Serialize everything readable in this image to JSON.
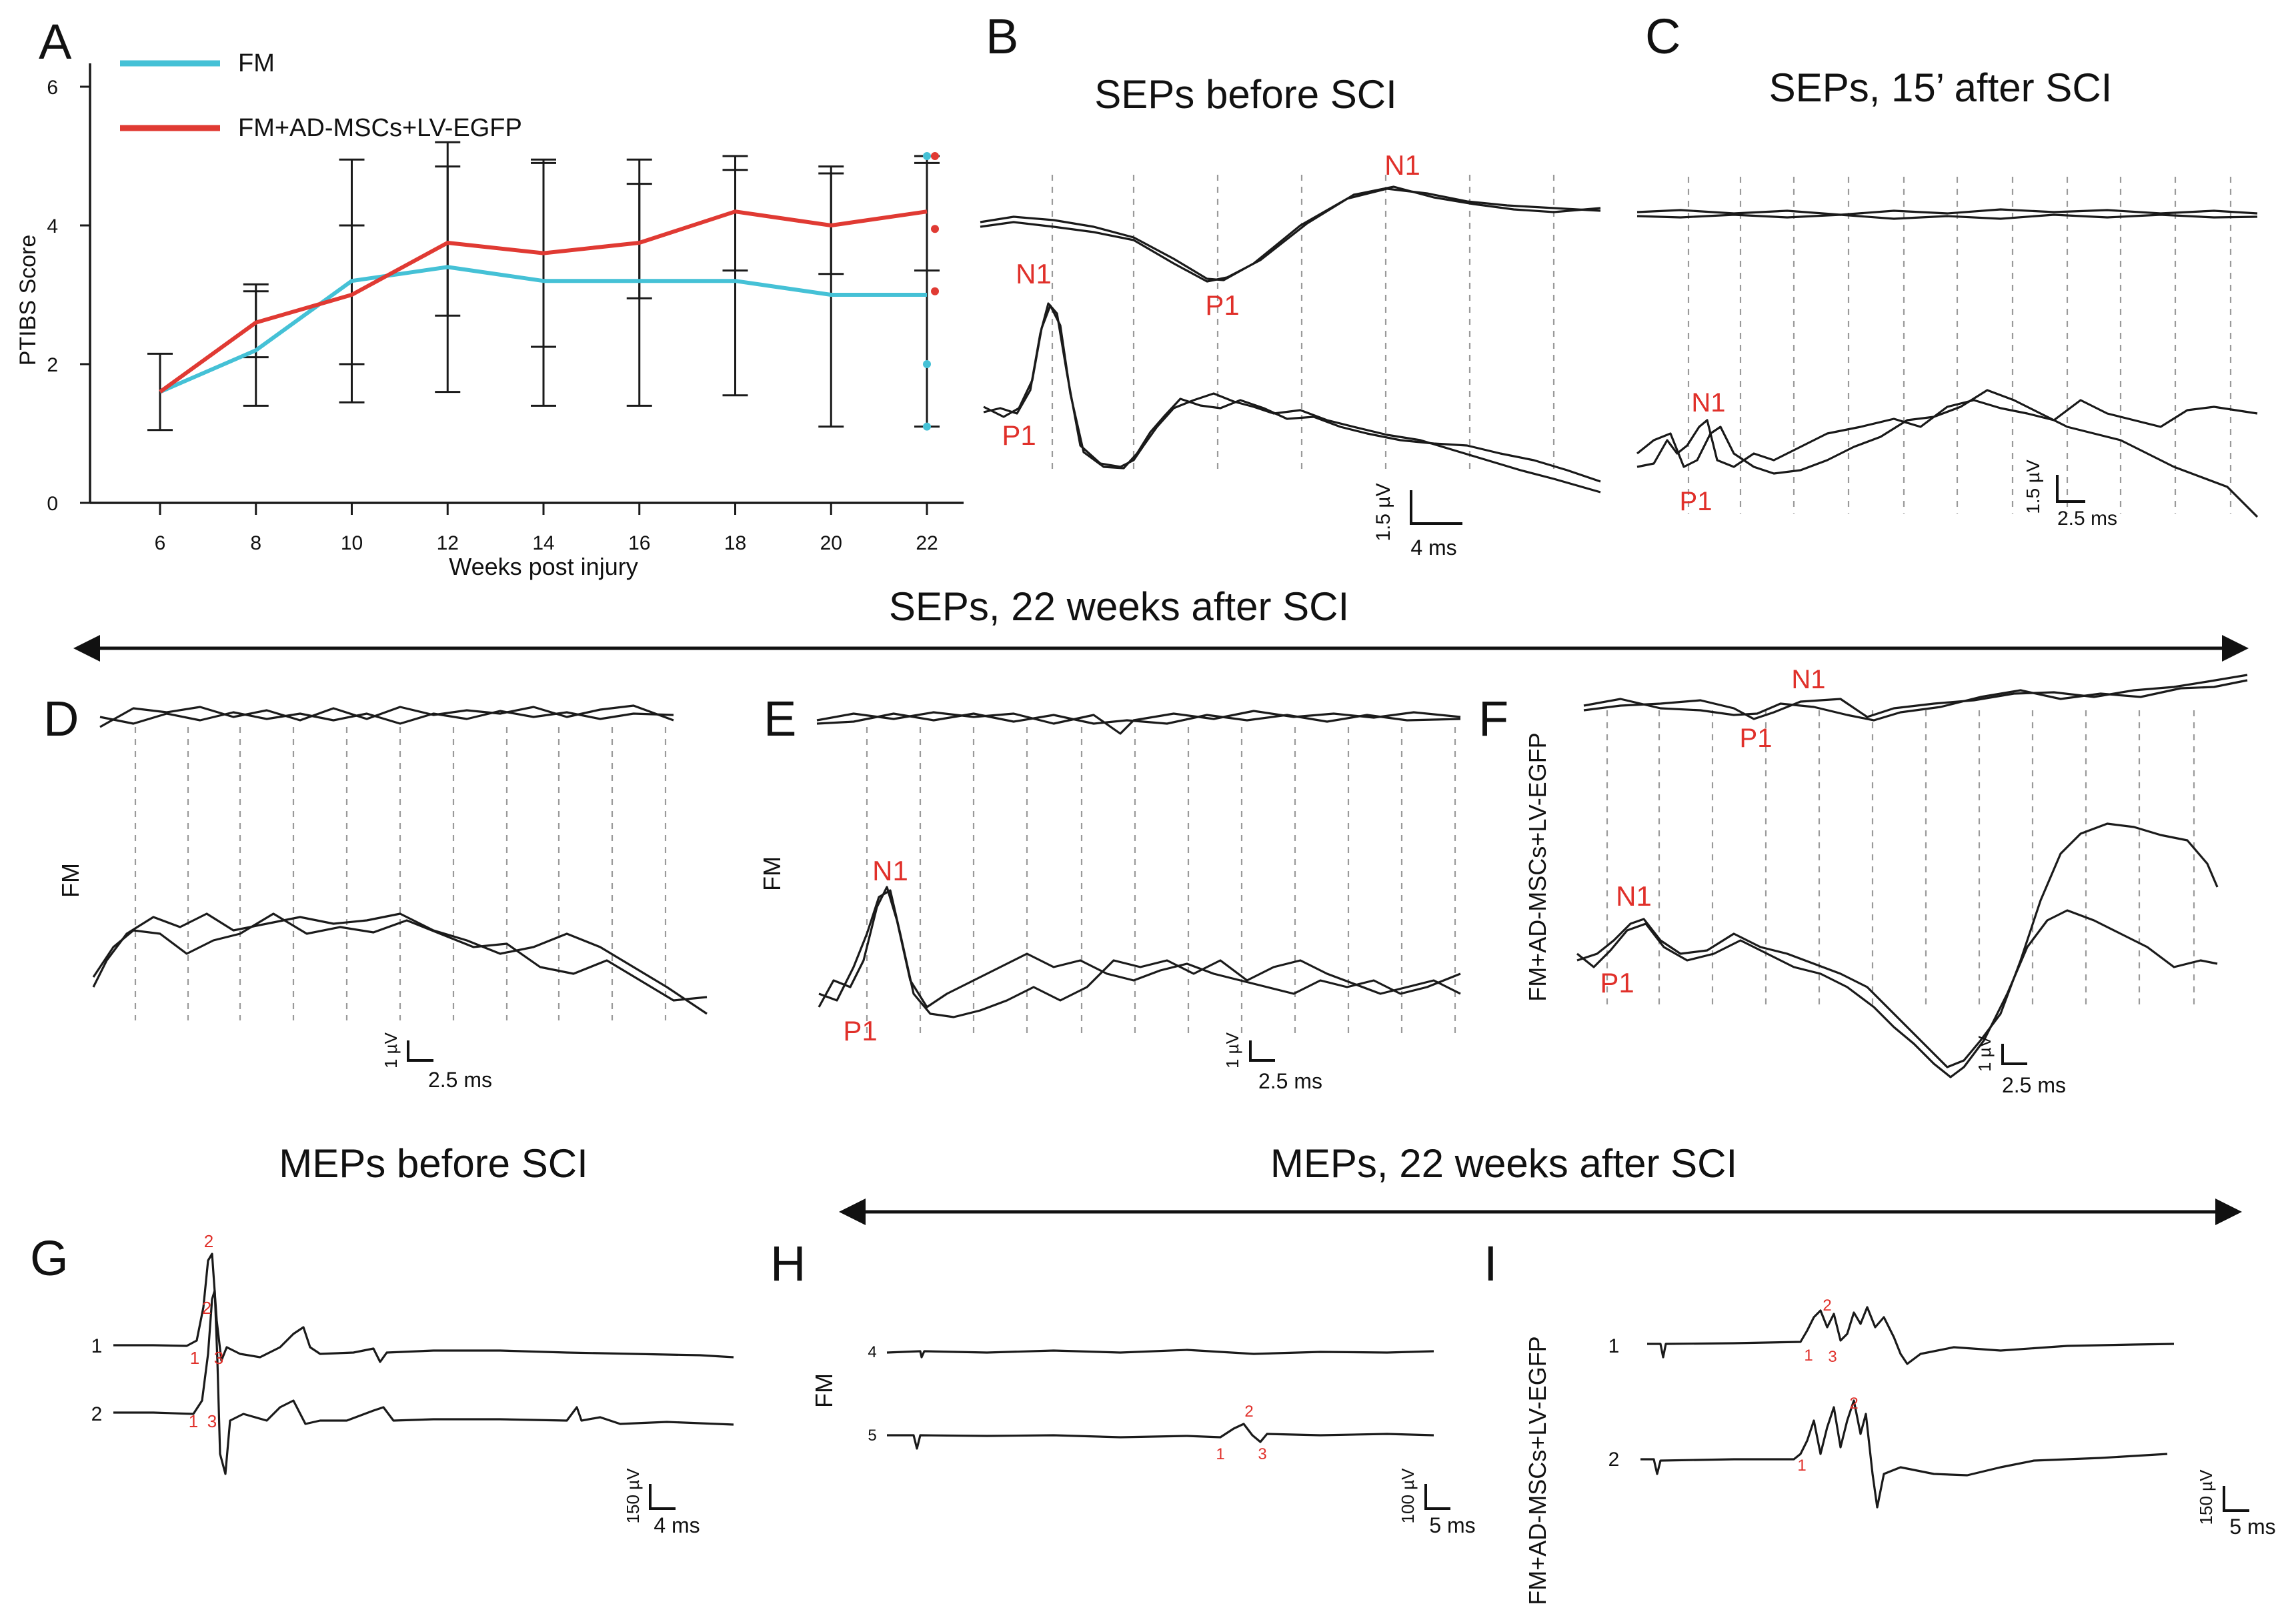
{
  "panels": {
    "A": "A",
    "B": "B",
    "C": "C",
    "D": "D",
    "E": "E",
    "F": "F",
    "G": "G",
    "H": "H",
    "I": "I"
  },
  "titles": {
    "sep_before": "SEPs before SCI",
    "sep_15": "SEPs, 15’ after SCI",
    "sep_22": "SEPs, 22 weeks after SCI",
    "mep_before": "MEPs before SCI",
    "mep_22": "MEPs, 22 weeks after SCI"
  },
  "group_labels": {
    "fm": "FM",
    "fm_ad": "FM+AD-MSCs+LV-EGFP"
  },
  "peaks": {
    "n1": "N1",
    "p1": "P1"
  },
  "scales": {
    "b": {
      "v": "1.5 µV",
      "t": "4 ms"
    },
    "c": {
      "v": "1.5 µV",
      "t": "2.5 ms"
    },
    "d": {
      "v": "1 µV",
      "t": "2.5 ms"
    },
    "e": {
      "v": "1 µV",
      "t": "2.5 ms"
    },
    "f": {
      "v": "1 µV",
      "t": "2.5 ms"
    },
    "g": {
      "v": "150 µV",
      "t": "4 ms"
    },
    "h": {
      "v": "100 µV",
      "t": "5 ms"
    },
    "i": {
      "v": "150 µV",
      "t": "5 ms"
    }
  },
  "mep_labels": {
    "g": {
      "row1": "1",
      "row2": "2",
      "n1": "1",
      "n2": "2",
      "n3": "3"
    },
    "h": {
      "row1": "4",
      "row2": "5",
      "n1": "1",
      "n2": "2",
      "n3": "3"
    },
    "i": {
      "row1": "1",
      "row2": "2",
      "n1": "1",
      "n2": "2",
      "n3": "3"
    }
  },
  "colors": {
    "fm": "#45c1d6",
    "fm_ad": "#e03a33",
    "peak_label": "#e0302a",
    "trace": "#1a1a1a"
  },
  "chart_data": {
    "type": "line",
    "title": "",
    "xlabel": "Weeks post injury",
    "ylabel": "PTIBS Score",
    "x": [
      6,
      8,
      10,
      12,
      14,
      16,
      18,
      20,
      22
    ],
    "x_tick_labels": [
      "6",
      "8",
      "10",
      "12",
      "14",
      "16",
      "18",
      "20",
      "22"
    ],
    "y_tick_labels": [
      "0",
      "2",
      "4",
      "6"
    ],
    "ylim": [
      0,
      6
    ],
    "legend_position": "top-left",
    "series": [
      {
        "name": "FM",
        "color": "#45c1d6",
        "values": [
          1.6,
          2.2,
          3.2,
          3.4,
          3.2,
          3.2,
          3.2,
          3.0,
          3.0
        ]
      },
      {
        "name": "FM+AD-MSCs+LV-EGFP",
        "color": "#e03a33",
        "values": [
          1.6,
          2.6,
          3.0,
          3.75,
          3.6,
          3.75,
          4.2,
          4.0,
          4.2
        ]
      }
    ],
    "error_bars": [
      {
        "x": 6,
        "low": 1.05,
        "high": 2.15
      },
      {
        "x": 8,
        "low": 1.4,
        "high": 3.15
      },
      {
        "x": 8,
        "low": 2.1,
        "high": 3.05
      },
      {
        "x": 10,
        "low": 1.45,
        "high": 4.95
      },
      {
        "x": 10,
        "low": 2.0,
        "high": 4.0
      },
      {
        "x": 12,
        "low": 1.6,
        "high": 5.2
      },
      {
        "x": 12,
        "low": 2.7,
        "high": 4.85
      },
      {
        "x": 14,
        "low": 1.4,
        "high": 4.95
      },
      {
        "x": 14,
        "low": 2.25,
        "high": 4.9
      },
      {
        "x": 16,
        "low": 1.4,
        "high": 4.95
      },
      {
        "x": 16,
        "low": 2.95,
        "high": 4.6
      },
      {
        "x": 18,
        "low": 1.55,
        "high": 5.0
      },
      {
        "x": 18,
        "low": 3.35,
        "high": 4.8
      },
      {
        "x": 20,
        "low": 1.1,
        "high": 4.85
      },
      {
        "x": 20,
        "low": 3.3,
        "high": 4.75
      },
      {
        "x": 22,
        "low": 1.1,
        "high": 4.9
      },
      {
        "x": 22,
        "low": 3.35,
        "high": 5.0
      }
    ],
    "scatter_points": [
      {
        "series": "FM",
        "x": 22,
        "y": 5.0
      },
      {
        "series": "FM",
        "x": 22,
        "y": 2.0
      },
      {
        "series": "FM",
        "x": 22,
        "y": 1.1
      },
      {
        "series": "FM+AD-MSCs+LV-EGFP",
        "x": 22,
        "y": 5.0
      },
      {
        "series": "FM+AD-MSCs+LV-EGFP",
        "x": 22,
        "y": 3.95
      },
      {
        "series": "FM+AD-MSCs+LV-EGFP",
        "x": 22,
        "y": 3.05
      }
    ]
  }
}
